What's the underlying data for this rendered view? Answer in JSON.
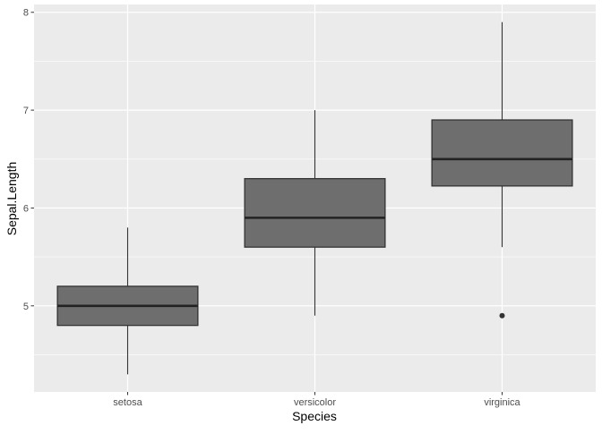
{
  "chart_data": {
    "type": "boxplot",
    "xlabel": "Species",
    "ylabel": "Sepal.Length",
    "categories": [
      "setosa",
      "versicolor",
      "virginica"
    ],
    "boxes": [
      {
        "category": "setosa",
        "whisker_low": 4.3,
        "q1": 4.8,
        "median": 5.0,
        "q3": 5.2,
        "whisker_high": 5.8,
        "outliers": []
      },
      {
        "category": "versicolor",
        "whisker_low": 4.9,
        "q1": 5.6,
        "median": 5.9,
        "q3": 6.3,
        "whisker_high": 7.0,
        "outliers": []
      },
      {
        "category": "virginica",
        "whisker_low": 5.6,
        "q1": 6.225,
        "median": 6.5,
        "q3": 6.9,
        "whisker_high": 7.9,
        "outliers": [
          4.9
        ]
      }
    ],
    "y_ticks": [
      5,
      6,
      7,
      8
    ],
    "y_minor_ticks": [
      4.5,
      5.5,
      6.5,
      7.5
    ],
    "ylim": [
      4.12,
      8.08
    ],
    "grid": true,
    "colors": {
      "panel_background": "#ebebeb",
      "grid": "#ffffff",
      "box_fill": "#6e6e6e",
      "box_stroke": "#333333",
      "median": "#222222",
      "outlier": "#333333"
    }
  }
}
